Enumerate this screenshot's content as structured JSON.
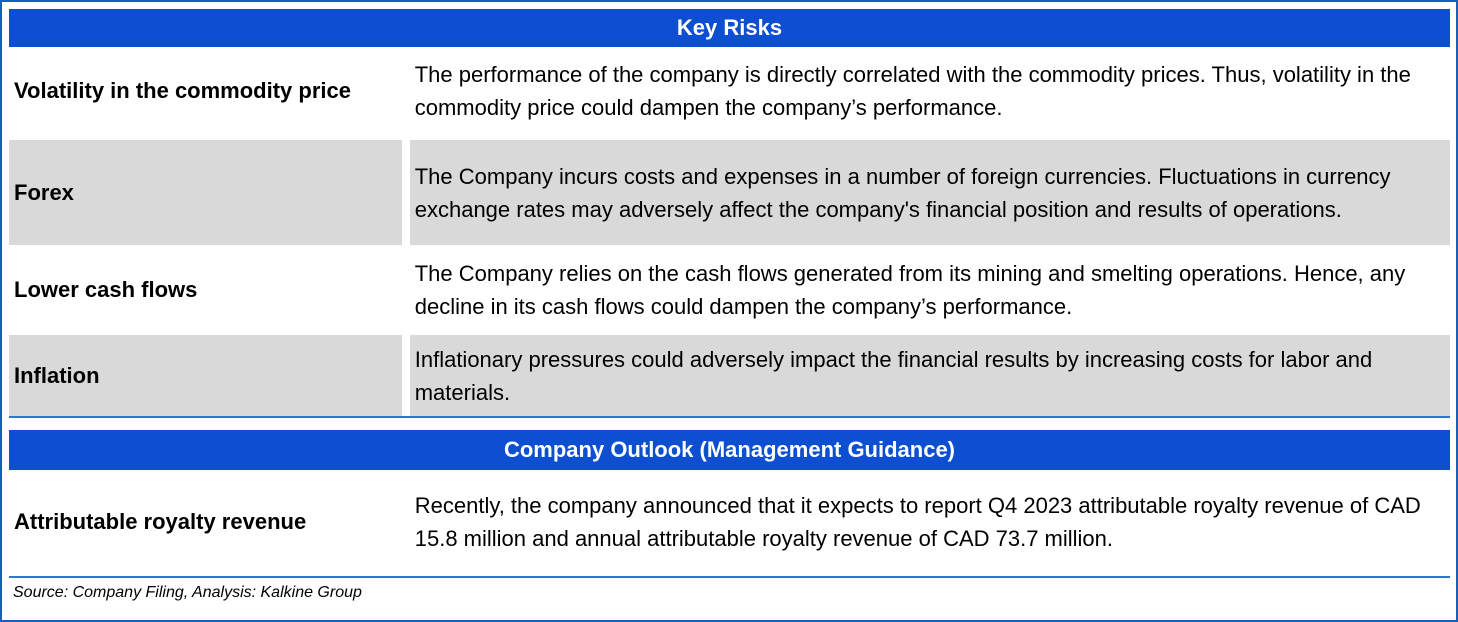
{
  "key_risks": {
    "header": "Key Risks",
    "rows": [
      {
        "label": "Volatility in the commodity price",
        "description": "The performance of the company is directly correlated with the commodity prices. Thus, volatility in the commodity price could dampen the company’s performance."
      },
      {
        "label": "Forex",
        "description": "The Company incurs costs and expenses in a number of foreign currencies. Fluctuations in currency exchange rates may adversely affect the company's financial position and results of operations."
      },
      {
        "label": "Lower cash flows",
        "description": "The Company relies on the cash flows generated from its mining and smelting operations. Hence, any decline in its cash flows could dampen the company’s performance."
      },
      {
        "label": "Inflation",
        "description": "Inflationary pressures could adversely impact the financial results by increasing costs for labor and materials."
      }
    ]
  },
  "outlook": {
    "header": "Company Outlook (Management Guidance)",
    "rows": [
      {
        "label": "Attributable royalty revenue",
        "description": "Recently, the company announced that it expects to report Q4 2023 attributable royalty revenue of CAD 15.8 million and annual attributable royalty revenue of CAD 73.7 million."
      }
    ]
  },
  "source": "Source: Company Filing, Analysis: Kalkine Group",
  "colors": {
    "header_bg": "#0d4fd0",
    "shade": "#d9d9d9",
    "border": "#1b5fb5"
  }
}
